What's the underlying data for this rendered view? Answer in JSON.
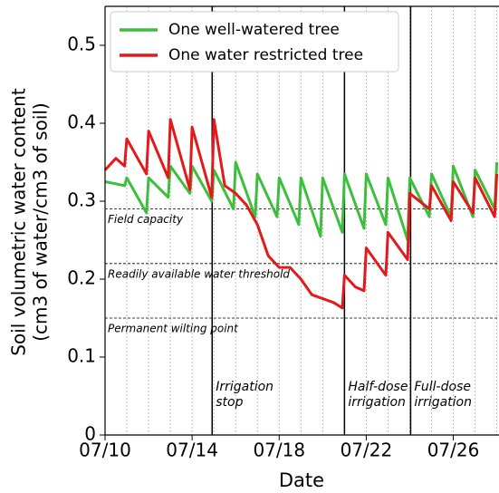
{
  "chart_data": {
    "type": "line",
    "xlabel": "Date",
    "ylabel": [
      "Soil volumetric water content",
      "(cm3 of water/cm3 of soil)"
    ],
    "xlim": [
      10,
      28.1
    ],
    "ylim": [
      0,
      0.55
    ],
    "xticks": [
      {
        "value": 10,
        "label": "07/10"
      },
      {
        "value": 14,
        "label": "07/14"
      },
      {
        "value": 18,
        "label": "07/18"
      },
      {
        "value": 22,
        "label": "07/22"
      },
      {
        "value": 26,
        "label": "07/26"
      }
    ],
    "x_minor_ticks": [
      11,
      12,
      13,
      15,
      16,
      17,
      19,
      20,
      21,
      23,
      24,
      25,
      27,
      28
    ],
    "yticks": [
      0.0,
      0.1,
      0.2,
      0.3,
      0.4,
      0.5
    ],
    "grid": true,
    "legend": "upper left",
    "series": [
      {
        "name": "One well-watered tree",
        "color": "#3dbf3d",
        "x": [
          10.0,
          10.9,
          11.0,
          11.9,
          12.0,
          12.9,
          13.0,
          13.9,
          14.0,
          14.9,
          15.0,
          15.9,
          16.0,
          16.9,
          17.0,
          17.9,
          18.0,
          18.9,
          19.0,
          19.9,
          20.0,
          20.9,
          21.0,
          21.9,
          22.0,
          22.9,
          23.0,
          23.9,
          24.0,
          24.9,
          25.0,
          25.9,
          26.0,
          26.9,
          27.0,
          27.9,
          28.0
        ],
        "values": [
          0.325,
          0.32,
          0.33,
          0.285,
          0.33,
          0.305,
          0.345,
          0.31,
          0.345,
          0.3,
          0.34,
          0.29,
          0.35,
          0.28,
          0.335,
          0.28,
          0.33,
          0.27,
          0.33,
          0.255,
          0.33,
          0.26,
          0.335,
          0.265,
          0.335,
          0.27,
          0.33,
          0.25,
          0.33,
          0.28,
          0.335,
          0.28,
          0.345,
          0.28,
          0.34,
          0.29,
          0.35
        ]
      },
      {
        "name": "One water restricted tree",
        "color": "#e31a1c",
        "x": [
          10.0,
          10.5,
          10.9,
          11.0,
          11.5,
          11.9,
          12.0,
          12.9,
          13.0,
          13.9,
          14.0,
          14.9,
          15.0,
          15.5,
          16.0,
          16.5,
          17.0,
          17.5,
          18.0,
          18.5,
          19.0,
          19.5,
          20.0,
          20.5,
          20.9,
          21.0,
          21.5,
          21.9,
          22.0,
          22.9,
          23.0,
          23.9,
          24.0,
          24.9,
          25.0,
          25.9,
          26.0,
          26.9,
          27.0,
          27.9,
          28.0
        ],
        "values": [
          0.34,
          0.355,
          0.345,
          0.38,
          0.355,
          0.335,
          0.39,
          0.33,
          0.405,
          0.315,
          0.395,
          0.305,
          0.405,
          0.32,
          0.31,
          0.295,
          0.27,
          0.23,
          0.215,
          0.215,
          0.2,
          0.18,
          0.175,
          0.17,
          0.163,
          0.205,
          0.19,
          0.185,
          0.24,
          0.205,
          0.26,
          0.225,
          0.31,
          0.29,
          0.32,
          0.275,
          0.325,
          0.285,
          0.33,
          0.28,
          0.335
        ]
      }
    ],
    "hlines": [
      {
        "value": 0.29,
        "label": "Field capacity"
      },
      {
        "value": 0.22,
        "label": "Readily available water threshold"
      },
      {
        "value": 0.15,
        "label": "Permanent wilting point"
      }
    ],
    "vlines": [
      {
        "value": 14.92,
        "label": [
          "Irrigation",
          "stop"
        ]
      },
      {
        "value": 21.0,
        "label": [
          "Half-dose",
          "irrigation"
        ]
      },
      {
        "value": 24.04,
        "label": [
          "Full-dose",
          "irrigation"
        ]
      }
    ]
  }
}
